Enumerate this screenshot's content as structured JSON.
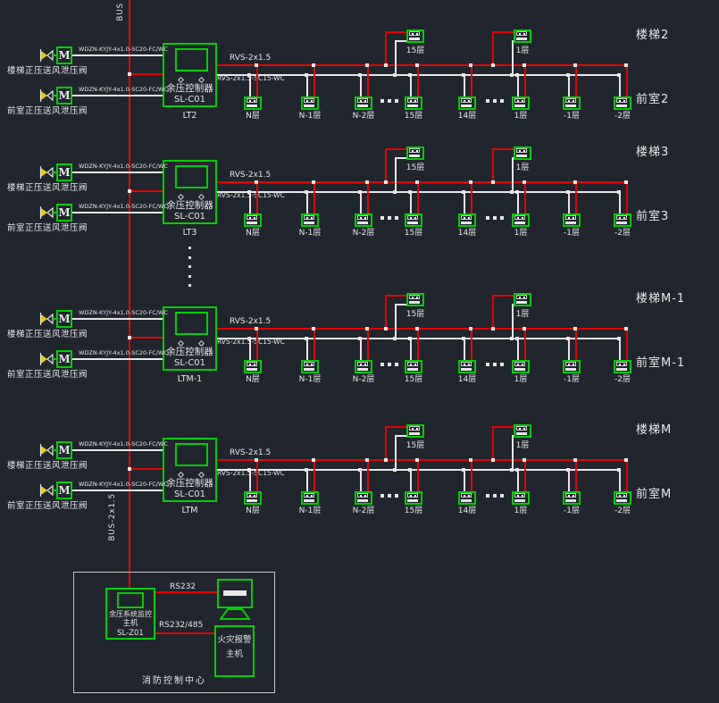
{
  "colors": {
    "background": "#20252e",
    "cad_green": "#00cf00",
    "line_red": "#ea0000",
    "wire_white": "#e8e8e8",
    "valve_yellow": "#e8cf00"
  },
  "bus": {
    "top_label": "BUS",
    "riser_label": "BUS-2x1.5"
  },
  "symbols": {
    "motor": "M"
  },
  "sections": [
    {
      "tag": "LT2",
      "stair_room": "楼梯2",
      "front_room": "前室2",
      "controller": {
        "title": "余压控制器",
        "model": "SL-C01"
      },
      "valves": [
        {
          "cable": "WDZN-KYJY-4x1.0-SC20-FC/WC",
          "label": "楼梯正压送风泄压阀"
        },
        {
          "cable": "WDZN-KYJY-4x1.0-SC20-FC/WC",
          "label": "前室正压送风泄压阀"
        }
      ],
      "trunk_cable": "RVS-2x1.5",
      "branch_cable": "RVS-2x1.5-SC15-WC",
      "stair_sensors": [
        "15层",
        "1层"
      ],
      "front_sensors": [
        "N层",
        "N-1层",
        "N-2层",
        "15层",
        "14层",
        "1层",
        "-1层",
        "-2层"
      ]
    },
    {
      "tag": "LT3",
      "stair_room": "楼梯3",
      "front_room": "前室3",
      "controller": {
        "title": "余压控制器",
        "model": "SL-C01"
      },
      "valves": [
        {
          "cable": "WDZN-KYJY-4x1.0-SC20-FC/WC",
          "label": "楼梯正压送风泄压阀"
        },
        {
          "cable": "WDZN-KYJY-4x1.0-SC20-FC/WC",
          "label": "前室正压送风泄压阀"
        }
      ],
      "trunk_cable": "RVS-2x1.5",
      "branch_cable": "RVS-2x1.5-SC15-WC",
      "stair_sensors": [
        "15层",
        "1层"
      ],
      "front_sensors": [
        "N层",
        "N-1层",
        "N-2层",
        "15层",
        "14层",
        "1层",
        "-1层",
        "-2层"
      ]
    },
    {
      "tag": "LTM-1",
      "stair_room": "楼梯M-1",
      "front_room": "前室M-1",
      "controller": {
        "title": "余压控制器",
        "model": "SL-C01"
      },
      "valves": [
        {
          "cable": "WDZN-KYJY-4x1.0-SC20-FC/WC",
          "label": "楼梯正压送风泄压阀"
        },
        {
          "cable": "WDZN-KYJY-4x1.0-SC20-FC/WC",
          "label": "前室正压送风泄压阀"
        }
      ],
      "trunk_cable": "RVS-2x1.5",
      "branch_cable": "RVS-2x1.5-SC15-WC",
      "stair_sensors": [
        "15层",
        "1层"
      ],
      "front_sensors": [
        "N层",
        "N-1层",
        "N-2层",
        "15层",
        "14层",
        "1层",
        "-1层",
        "-2层"
      ]
    },
    {
      "tag": "LTM",
      "stair_room": "楼梯M",
      "front_room": "前室M",
      "controller": {
        "title": "余压控制器",
        "model": "SL-C01"
      },
      "valves": [
        {
          "cable": "WDZN-KYJY-4x1.0-SC20-FC/WC",
          "label": "楼梯正压送风泄压阀"
        },
        {
          "cable": "WDZN-KYJY-4x1.0-SC20-FC/WC",
          "label": "前室正压送风泄压阀"
        }
      ],
      "trunk_cable": "RVS-2x1.5",
      "branch_cable": "RVS-2x1.5-SC15-WC",
      "stair_sensors": [
        "15层",
        "1层"
      ],
      "front_sensors": [
        "N层",
        "N-1层",
        "N-2层",
        "15层",
        "14层",
        "1层",
        "-1层",
        "-2层"
      ]
    }
  ],
  "control_center": {
    "title": "消防控制中心",
    "host": {
      "line1": "余压系统监控",
      "line2": "主机",
      "line3": "SL-Z01"
    },
    "links": [
      {
        "label": "RS232"
      },
      {
        "label": "RS232/485"
      }
    ],
    "fire_alarm": {
      "line1": "火灾报警",
      "line2": "主机"
    }
  }
}
